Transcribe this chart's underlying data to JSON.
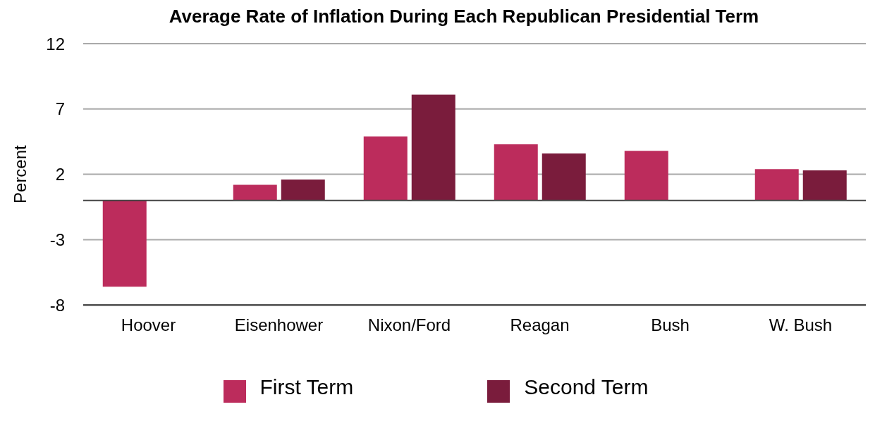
{
  "chart_data": {
    "type": "bar",
    "title": "Average Rate of Inflation During Each Republican Presidential Term",
    "ylabel": "Percent",
    "categories": [
      "Hoover",
      "Eisenhower",
      "Nixon/Ford",
      "Reagan",
      "Bush",
      "W. Bush"
    ],
    "series": [
      {
        "name": "First Term",
        "color": "#bc2c5c",
        "values": [
          -6.6,
          1.2,
          4.9,
          4.3,
          3.8,
          2.4
        ]
      },
      {
        "name": "Second Term",
        "color": "#7a1c3c",
        "values": [
          null,
          1.6,
          8.1,
          3.6,
          null,
          2.3
        ]
      }
    ],
    "ylim": [
      -8,
      12
    ],
    "yticks": [
      -8,
      -3,
      2,
      7,
      12
    ],
    "grid": "y",
    "legend": "bottom"
  }
}
